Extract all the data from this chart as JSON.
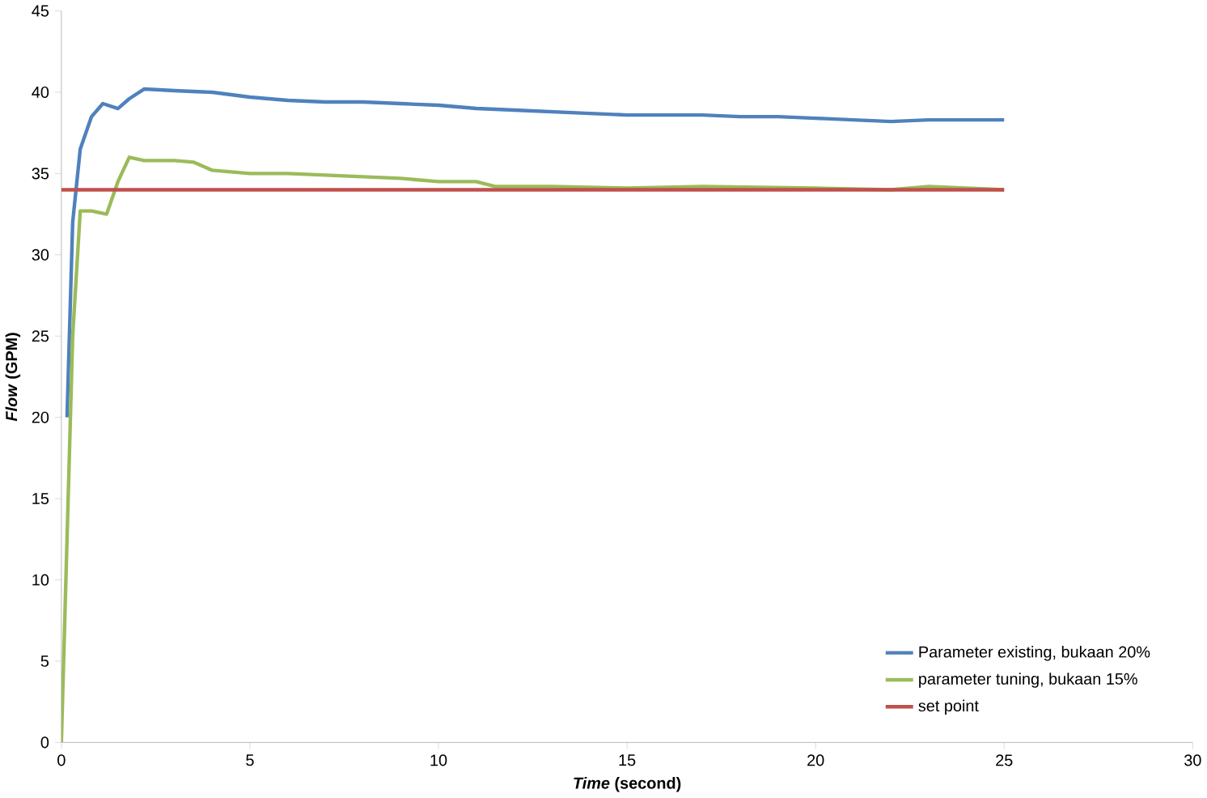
{
  "chart_data": {
    "type": "line",
    "xlabel": "*Time* (second)",
    "ylabel": "*Flow* (GPM)",
    "xlim": [
      0,
      30
    ],
    "ylim": [
      0,
      45
    ],
    "xticks": [
      0,
      5,
      10,
      15,
      20,
      25,
      30
    ],
    "yticks": [
      0,
      5,
      10,
      15,
      20,
      25,
      30,
      35,
      40,
      45
    ],
    "grid": false,
    "legend": "bottom right",
    "marker": "none",
    "line_style": "solid",
    "series": [
      {
        "name": "Parameter existing, bukaan 20%",
        "color": "#4f81bd",
        "x": [
          0.15,
          0.3,
          0.5,
          0.8,
          1.1,
          1.5,
          1.8,
          2.2,
          3,
          4,
          5,
          6,
          7,
          8,
          9,
          10,
          11,
          12,
          13,
          14,
          15,
          16,
          17,
          18,
          19,
          20,
          21,
          22,
          23,
          24,
          25
        ],
        "values": [
          20,
          32,
          36.5,
          38.5,
          39.3,
          39.0,
          39.6,
          40.2,
          40.1,
          40.0,
          39.7,
          39.5,
          39.4,
          39.4,
          39.3,
          39.2,
          39.0,
          38.9,
          38.8,
          38.7,
          38.6,
          38.6,
          38.6,
          38.5,
          38.5,
          38.4,
          38.3,
          38.2,
          38.3,
          38.3,
          38.3
        ]
      },
      {
        "name": "parameter tuning, bukaan 15%",
        "color": "#9bbb59",
        "x": [
          0,
          0.3,
          0.5,
          0.8,
          1.2,
          1.5,
          1.8,
          2.2,
          3,
          3.5,
          4,
          5,
          6,
          7,
          8,
          9,
          10,
          11,
          11.5,
          13,
          15,
          17,
          20,
          22,
          23,
          24,
          25
        ],
        "values": [
          0,
          25,
          32.7,
          32.7,
          32.5,
          34.5,
          36.0,
          35.8,
          35.8,
          35.7,
          35.2,
          35.0,
          35.0,
          34.9,
          34.8,
          34.7,
          34.5,
          34.5,
          34.2,
          34.2,
          34.1,
          34.2,
          34.1,
          34.0,
          34.2,
          34.1,
          34.0
        ]
      },
      {
        "name": "set point",
        "color": "#c0504d",
        "x": [
          0,
          25
        ],
        "values": [
          34,
          34
        ]
      }
    ]
  }
}
